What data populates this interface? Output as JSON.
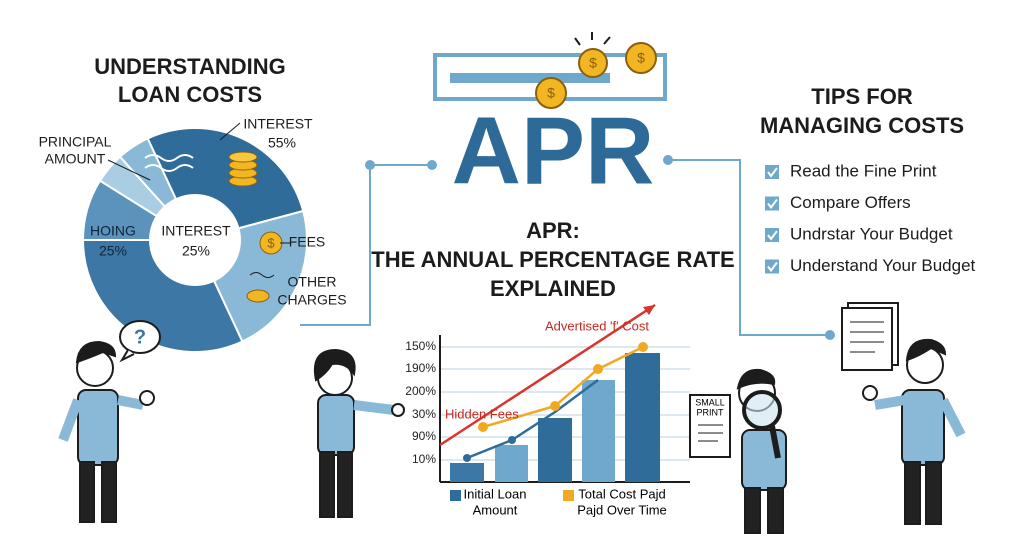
{
  "left_panel": {
    "title": [
      "UNDERSTANDING",
      "LOAN COSTS"
    ],
    "labels": {
      "principal": [
        "PRINCIPAL",
        "AMOUNT"
      ],
      "interest_outer": [
        "INTEREST",
        "55%"
      ],
      "hoing": [
        "HOING",
        "25%"
      ],
      "interest_center": [
        "INTEREST",
        "25%"
      ],
      "fees": "FEES",
      "other": [
        "OTHER",
        "CHARGES"
      ]
    },
    "bubble": "?"
  },
  "center": {
    "banner": "APR",
    "subtitle": [
      "APR:",
      "THE ANNUAL PERCENTAGE RATE",
      "EXPLAINED"
    ],
    "chart": {
      "yaxis": [
        "150%",
        "190%",
        "200%",
        "30%",
        "90%",
        "10%"
      ],
      "annotations": {
        "advertised": "Advertised 'f' Cost",
        "hidden": "Hidden Fees"
      },
      "legend": [
        [
          "Initial Loan",
          "Amount"
        ],
        [
          "Total Cost Pajd",
          "Pajd Over Time"
        ]
      ]
    },
    "document": [
      "SMALL",
      "PRINT"
    ]
  },
  "right_panel": {
    "title": [
      "TIPS FOR",
      "MANAGING COSTS"
    ],
    "tips": [
      "Read the Fine Print",
      "Compare Offers",
      "Undrstar Your Budget",
      "Understand Your Budget"
    ]
  }
}
